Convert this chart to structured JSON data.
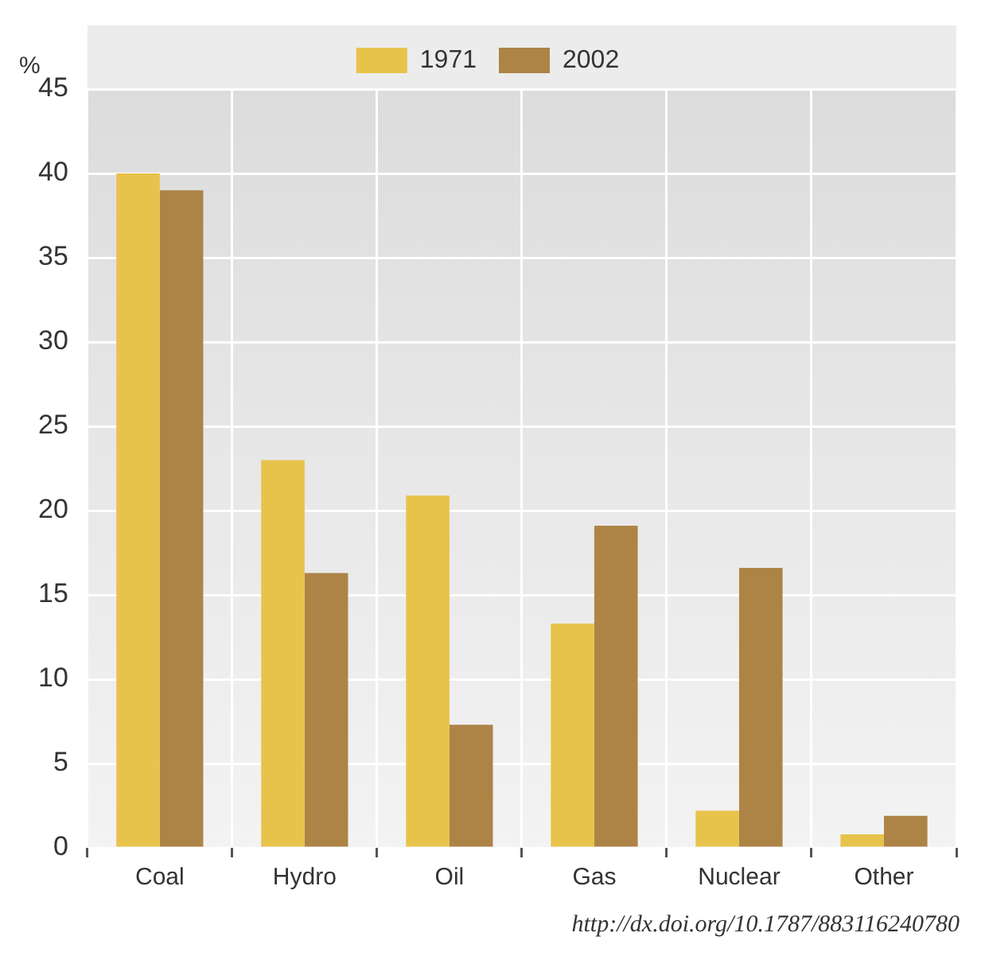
{
  "chart_data": {
    "type": "bar",
    "ylabel": "%",
    "categories": [
      "Coal",
      "Hydro",
      "Oil",
      "Gas",
      "Nuclear",
      "Other"
    ],
    "series": [
      {
        "name": "1971",
        "color": "#e8c34c",
        "values": [
          40,
          23,
          20.9,
          13.3,
          2.2,
          0.8
        ]
      },
      {
        "name": "2002",
        "color": "#ad8446",
        "values": [
          39,
          16.3,
          7.3,
          19.1,
          16.6,
          1.9
        ]
      }
    ],
    "ylim": [
      0,
      45
    ],
    "yticks": [
      0,
      5,
      10,
      15,
      20,
      25,
      30,
      35,
      40,
      45
    ],
    "grid": true,
    "legend": "top",
    "annotations": [
      "http://dx.doi.org/10.1787/883116240780"
    ]
  }
}
